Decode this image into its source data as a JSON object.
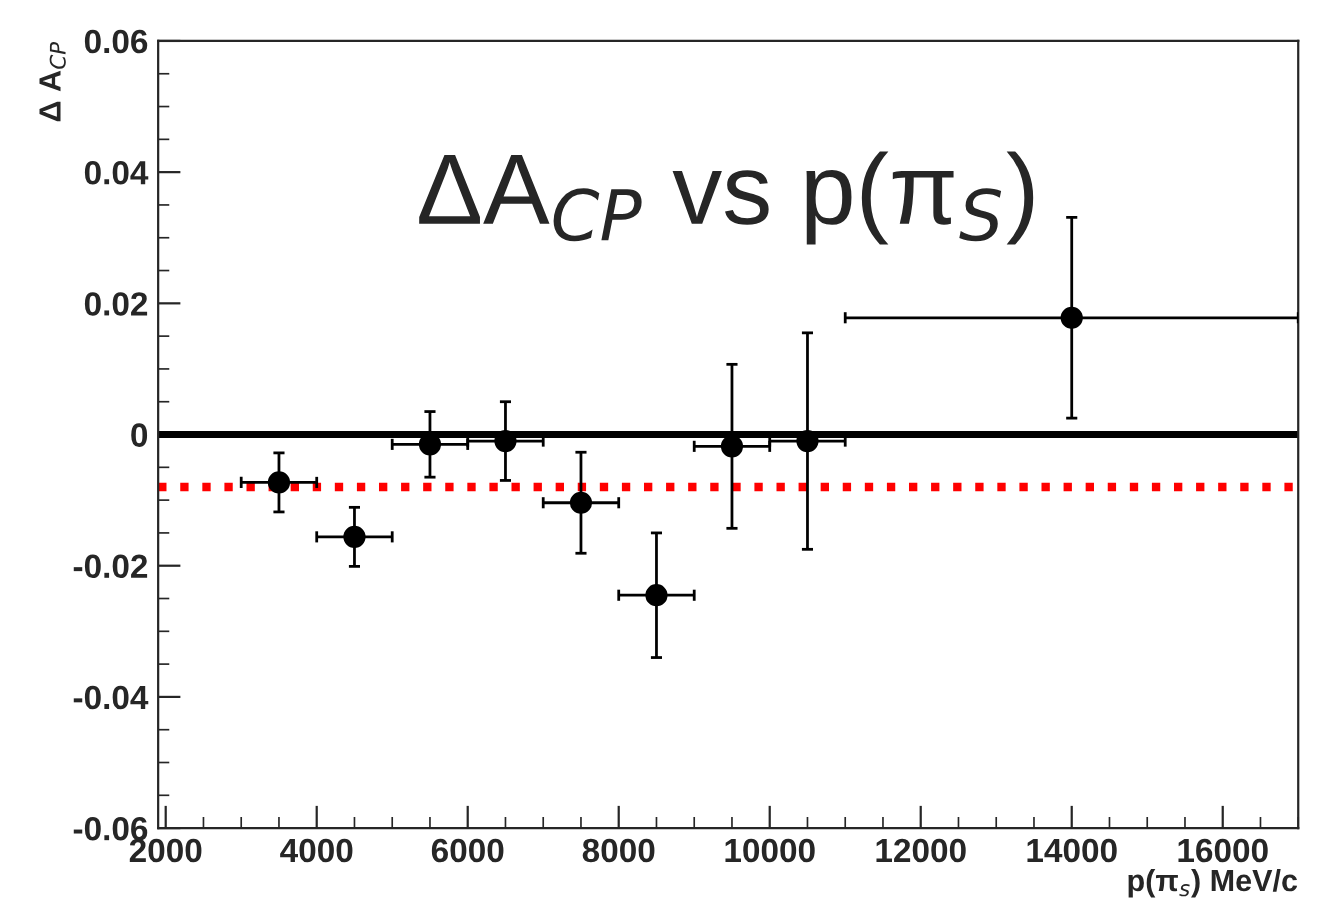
{
  "chart_data": {
    "type": "scatter",
    "title": "ΔA$_{CP}$ vs p(π$_{S}$)",
    "xlabel": "p(π$_{s}$) MeV/c",
    "ylabel": "Δ A$_{CP}$",
    "x": [
      3500,
      4500,
      5500,
      6500,
      7500,
      8500,
      9500,
      10500,
      14000
    ],
    "series": [
      {
        "color": "#000000",
        "values": [
          -0.0073,
          -0.0156,
          -0.0015,
          -0.001,
          -0.0104,
          -0.0245,
          -0.0018,
          -0.001,
          0.0178
        ],
        "errors": [
          0.0045,
          0.0045,
          0.005,
          0.006,
          0.0077,
          0.0095,
          0.0125,
          0.0165,
          0.0153
        ],
        "xerrors": [
          500,
          500,
          500,
          500,
          500,
          500,
          500,
          500,
          3000
        ]
      }
    ],
    "marker": "circle",
    "xlim": [
      1900,
      17000
    ],
    "xticks": [
      2000,
      4000,
      6000,
      8000,
      10000,
      12000,
      14000,
      16000
    ],
    "ylim": [
      -0.06,
      0.06
    ],
    "yticks": [
      {
        "value": -0.06,
        "label": "-0.06"
      },
      {
        "value": -0.04,
        "label": "-0.04"
      },
      {
        "value": -0.02,
        "label": "-0.02"
      },
      {
        "value": 0,
        "label": "0"
      },
      {
        "value": 0.02,
        "label": "0.02"
      },
      {
        "value": 0.04,
        "label": "0.04"
      },
      {
        "value": 0.06,
        "label": "0.06"
      }
    ],
    "ref_lines": [
      {
        "axis": "y",
        "value": 0,
        "color": "#000000",
        "line_style": "solid"
      },
      {
        "axis": "y",
        "value": -0.008,
        "color": "#ff0000",
        "line_style": "dotted"
      }
    ],
    "grid": false,
    "legend": false
  }
}
